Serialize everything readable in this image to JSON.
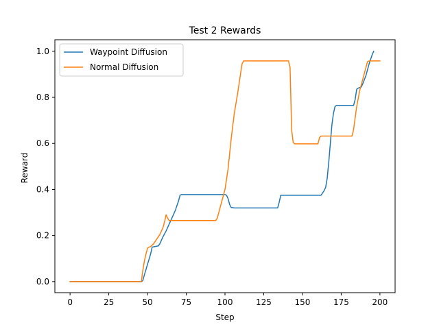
{
  "chart_data": {
    "type": "line",
    "title": "Test 2 Rewards",
    "xlabel": "Step",
    "ylabel": "Reward",
    "xlim": [
      -9.8,
      209.8
    ],
    "ylim": [
      -0.048,
      1.05
    ],
    "xticks": [
      0,
      25,
      50,
      75,
      100,
      125,
      150,
      175,
      200
    ],
    "yticks": [
      0.0,
      0.2,
      0.4,
      0.6,
      0.8,
      1.0
    ],
    "xtick_labels": [
      "0",
      "25",
      "50",
      "75",
      "100",
      "125",
      "150",
      "175",
      "200"
    ],
    "ytick_labels": [
      "0.0",
      "0.2",
      "0.4",
      "0.6",
      "0.8",
      "1.0"
    ],
    "grid": false,
    "legend_position": "upper-left",
    "series": [
      {
        "name": "Waypoint Diffusion",
        "color": "#1f77b4",
        "points": [
          [
            0,
            0.0
          ],
          [
            46,
            0.0
          ],
          [
            47,
            0.005
          ],
          [
            48,
            0.03
          ],
          [
            50,
            0.075
          ],
          [
            52,
            0.12
          ],
          [
            53,
            0.15
          ],
          [
            57,
            0.155
          ],
          [
            58,
            0.165
          ],
          [
            60,
            0.195
          ],
          [
            62,
            0.22
          ],
          [
            64,
            0.25
          ],
          [
            66,
            0.28
          ],
          [
            68,
            0.31
          ],
          [
            70,
            0.35
          ],
          [
            71,
            0.375
          ],
          [
            72,
            0.378
          ],
          [
            100,
            0.378
          ],
          [
            101,
            0.375
          ],
          [
            102,
            0.36
          ],
          [
            103,
            0.335
          ],
          [
            104,
            0.322
          ],
          [
            106,
            0.32
          ],
          [
            134,
            0.32
          ],
          [
            135,
            0.345
          ],
          [
            136,
            0.375
          ],
          [
            162,
            0.375
          ],
          [
            164,
            0.395
          ],
          [
            165,
            0.41
          ],
          [
            166,
            0.45
          ],
          [
            167,
            0.52
          ],
          [
            168,
            0.6
          ],
          [
            169,
            0.68
          ],
          [
            170,
            0.73
          ],
          [
            171,
            0.76
          ],
          [
            172,
            0.765
          ],
          [
            183,
            0.765
          ],
          [
            184,
            0.79
          ],
          [
            185,
            0.835
          ],
          [
            186,
            0.84
          ],
          [
            188,
            0.845
          ],
          [
            189,
            0.86
          ],
          [
            191,
            0.895
          ],
          [
            193,
            0.945
          ],
          [
            195,
            0.985
          ],
          [
            196,
            1.0
          ]
        ]
      },
      {
        "name": "Normal Diffusion",
        "color": "#ff7f0e",
        "points": [
          [
            0,
            0.0
          ],
          [
            46,
            0.0
          ],
          [
            47,
            0.05
          ],
          [
            48,
            0.09
          ],
          [
            49,
            0.12
          ],
          [
            50,
            0.145
          ],
          [
            51,
            0.15
          ],
          [
            52,
            0.152
          ],
          [
            54,
            0.165
          ],
          [
            56,
            0.185
          ],
          [
            58,
            0.205
          ],
          [
            60,
            0.235
          ],
          [
            61,
            0.26
          ],
          [
            62,
            0.29
          ],
          [
            63,
            0.275
          ],
          [
            64,
            0.265
          ],
          [
            94,
            0.265
          ],
          [
            95,
            0.275
          ],
          [
            96,
            0.3
          ],
          [
            98,
            0.35
          ],
          [
            100,
            0.4
          ],
          [
            102,
            0.49
          ],
          [
            104,
            0.62
          ],
          [
            106,
            0.73
          ],
          [
            108,
            0.81
          ],
          [
            110,
            0.9
          ],
          [
            111,
            0.945
          ],
          [
            112,
            0.958
          ],
          [
            141,
            0.958
          ],
          [
            142,
            0.93
          ],
          [
            142.5,
            0.8
          ],
          [
            143,
            0.66
          ],
          [
            144,
            0.605
          ],
          [
            145,
            0.598
          ],
          [
            160,
            0.598
          ],
          [
            161,
            0.625
          ],
          [
            162,
            0.632
          ],
          [
            182,
            0.632
          ],
          [
            183,
            0.66
          ],
          [
            185,
            0.76
          ],
          [
            187,
            0.83
          ],
          [
            189,
            0.88
          ],
          [
            191,
            0.93
          ],
          [
            192,
            0.955
          ],
          [
            193,
            0.958
          ],
          [
            200,
            0.958
          ]
        ]
      }
    ]
  }
}
